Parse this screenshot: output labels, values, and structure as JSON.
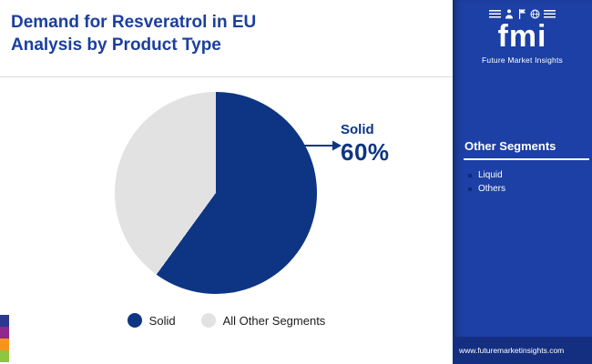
{
  "header": {
    "title_line1": "Demand for Resveratrol in EU",
    "title_line2": "Analysis by Product Type"
  },
  "chart_data": {
    "type": "pie",
    "title": "Demand for Resveratrol in EU Analysis by Product Type",
    "slices": [
      {
        "label": "Solid",
        "value": 60,
        "color": "#0d3583"
      },
      {
        "label": "All Other Segments",
        "value": 40,
        "color": "#e2e2e2"
      }
    ],
    "annotation": {
      "label": "Solid",
      "value": "60%"
    },
    "legend_position": "bottom",
    "start_angle_deg": 0,
    "direction": "clockwise"
  },
  "sidebar": {
    "logo_text": "fmi",
    "logo_tagline": "Future Market Insights",
    "section_title": "Other Segments",
    "items": [
      "Liquid",
      "Others"
    ],
    "footer_url": "www.futuremarketinsights.com",
    "panel_color": "#1c40a5",
    "footer_color": "#142f80"
  },
  "brand_strip_colors": [
    "#2b3990",
    "#92278f",
    "#f7941d",
    "#8dc63f"
  ],
  "text_colors": {
    "title": "#1b3f9e",
    "annotation": "#0d3583"
  }
}
